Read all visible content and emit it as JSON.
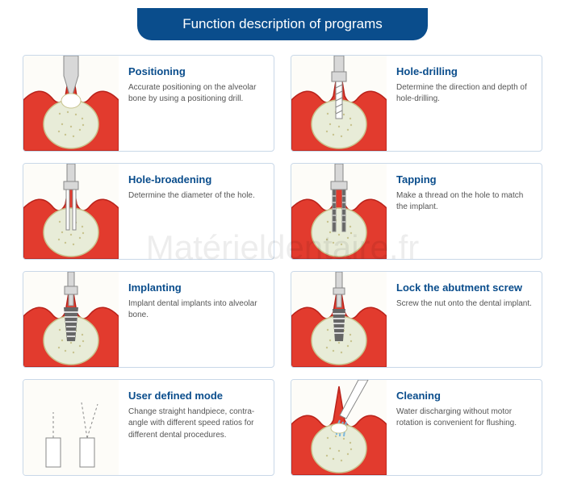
{
  "header": {
    "title": "Function description of programs"
  },
  "watermark": "Matérieldentaire.fr",
  "colors": {
    "primary": "#0a4d8c",
    "border": "#c9d8e8",
    "gum": "#e23b2e",
    "gum_dark": "#b8221a",
    "bone_fill": "#e8ecd8",
    "bone_stroke": "#c8c490",
    "tool_gray": "#d8d8d8",
    "tool_stroke": "#888",
    "implant": "#666",
    "text_body": "#555",
    "bg": "#ffffff",
    "illus_bg": "#fdfcf8"
  },
  "items": [
    {
      "title": "Positioning",
      "desc": "Accurate positioning on the alveolar bone by using a positioning drill.",
      "variant": "positioning"
    },
    {
      "title": "Hole-drilling",
      "desc": "Determine the direction and depth of hole-drilling.",
      "variant": "drilling"
    },
    {
      "title": "Hole-broadening",
      "desc": "Determine the diameter of the hole.",
      "variant": "broadening"
    },
    {
      "title": "Tapping",
      "desc": "Make a thread on the hole to match the implant.",
      "variant": "tapping"
    },
    {
      "title": "Implanting",
      "desc": "Implant dental implants into alveolar bone.",
      "variant": "implanting"
    },
    {
      "title": "Lock the abutment screw",
      "desc": "Screw the nut onto the dental implant.",
      "variant": "lock"
    },
    {
      "title": "User defined mode",
      "desc": "Change straight handpiece, contra-angle with different speed ratios for different dental procedures.",
      "variant": "user"
    },
    {
      "title": "Cleaning",
      "desc": "Water discharging without motor rotation is convenient for flushing.",
      "variant": "cleaning"
    }
  ]
}
